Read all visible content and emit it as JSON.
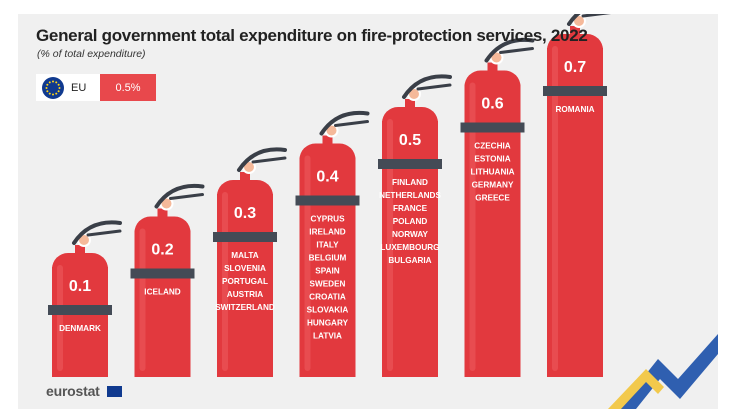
{
  "title": "General government total expenditure on fire-protection services, 2022",
  "subtitle": "(% of total expenditure)",
  "eu": {
    "label": "EU",
    "value": "0.5%"
  },
  "footer": {
    "brand": "eurostat"
  },
  "colors": {
    "extinguisher": "#e2393e",
    "extinguisher_highlight": "#ec5a5e",
    "band": "#444b56",
    "nozzle": "#3a3f48",
    "gauge": "#f5b99a",
    "accent": "#e8484c",
    "eu_blue": "#103a8f"
  },
  "chart_data": {
    "type": "bar",
    "title": "General government total expenditure on fire-protection services, 2022",
    "subtitle": "(% of total expenditure)",
    "unit": "% of total expenditure",
    "reference": {
      "label": "EU",
      "value": 0.5
    },
    "categories": [
      "0.1",
      "0.2",
      "0.3",
      "0.4",
      "0.5",
      "0.6",
      "0.7"
    ],
    "values": [
      0.1,
      0.2,
      0.3,
      0.4,
      0.5,
      0.6,
      0.7
    ],
    "value_labels": [
      "0.1",
      "0.2",
      "0.3",
      "0.4",
      "0.5",
      "0.6",
      "0.7"
    ],
    "countries": [
      [
        "DENMARK"
      ],
      [
        "ICELAND"
      ],
      [
        "MALTA",
        "SLOVENIA",
        "PORTUGAL",
        "AUSTRIA",
        "SWITZERLAND"
      ],
      [
        "CYPRUS",
        "IRELAND",
        "ITALY",
        "BELGIUM",
        "SPAIN",
        "SWEDEN",
        "CROATIA",
        "SLOVAKIA",
        "HUNGARY",
        "LATVIA"
      ],
      [
        "FINLAND",
        "NETHERLANDS",
        "FRANCE",
        "POLAND",
        "NORWAY",
        "LUXEMBOURG",
        "BULGARIA"
      ],
      [
        "CZECHIA",
        "ESTONIA",
        "LITHUANIA",
        "GERMANY",
        "GREECE"
      ],
      [
        "ROMANIA"
      ]
    ],
    "ylim": [
      0,
      0.7
    ],
    "xlabel": "",
    "ylabel": ""
  }
}
